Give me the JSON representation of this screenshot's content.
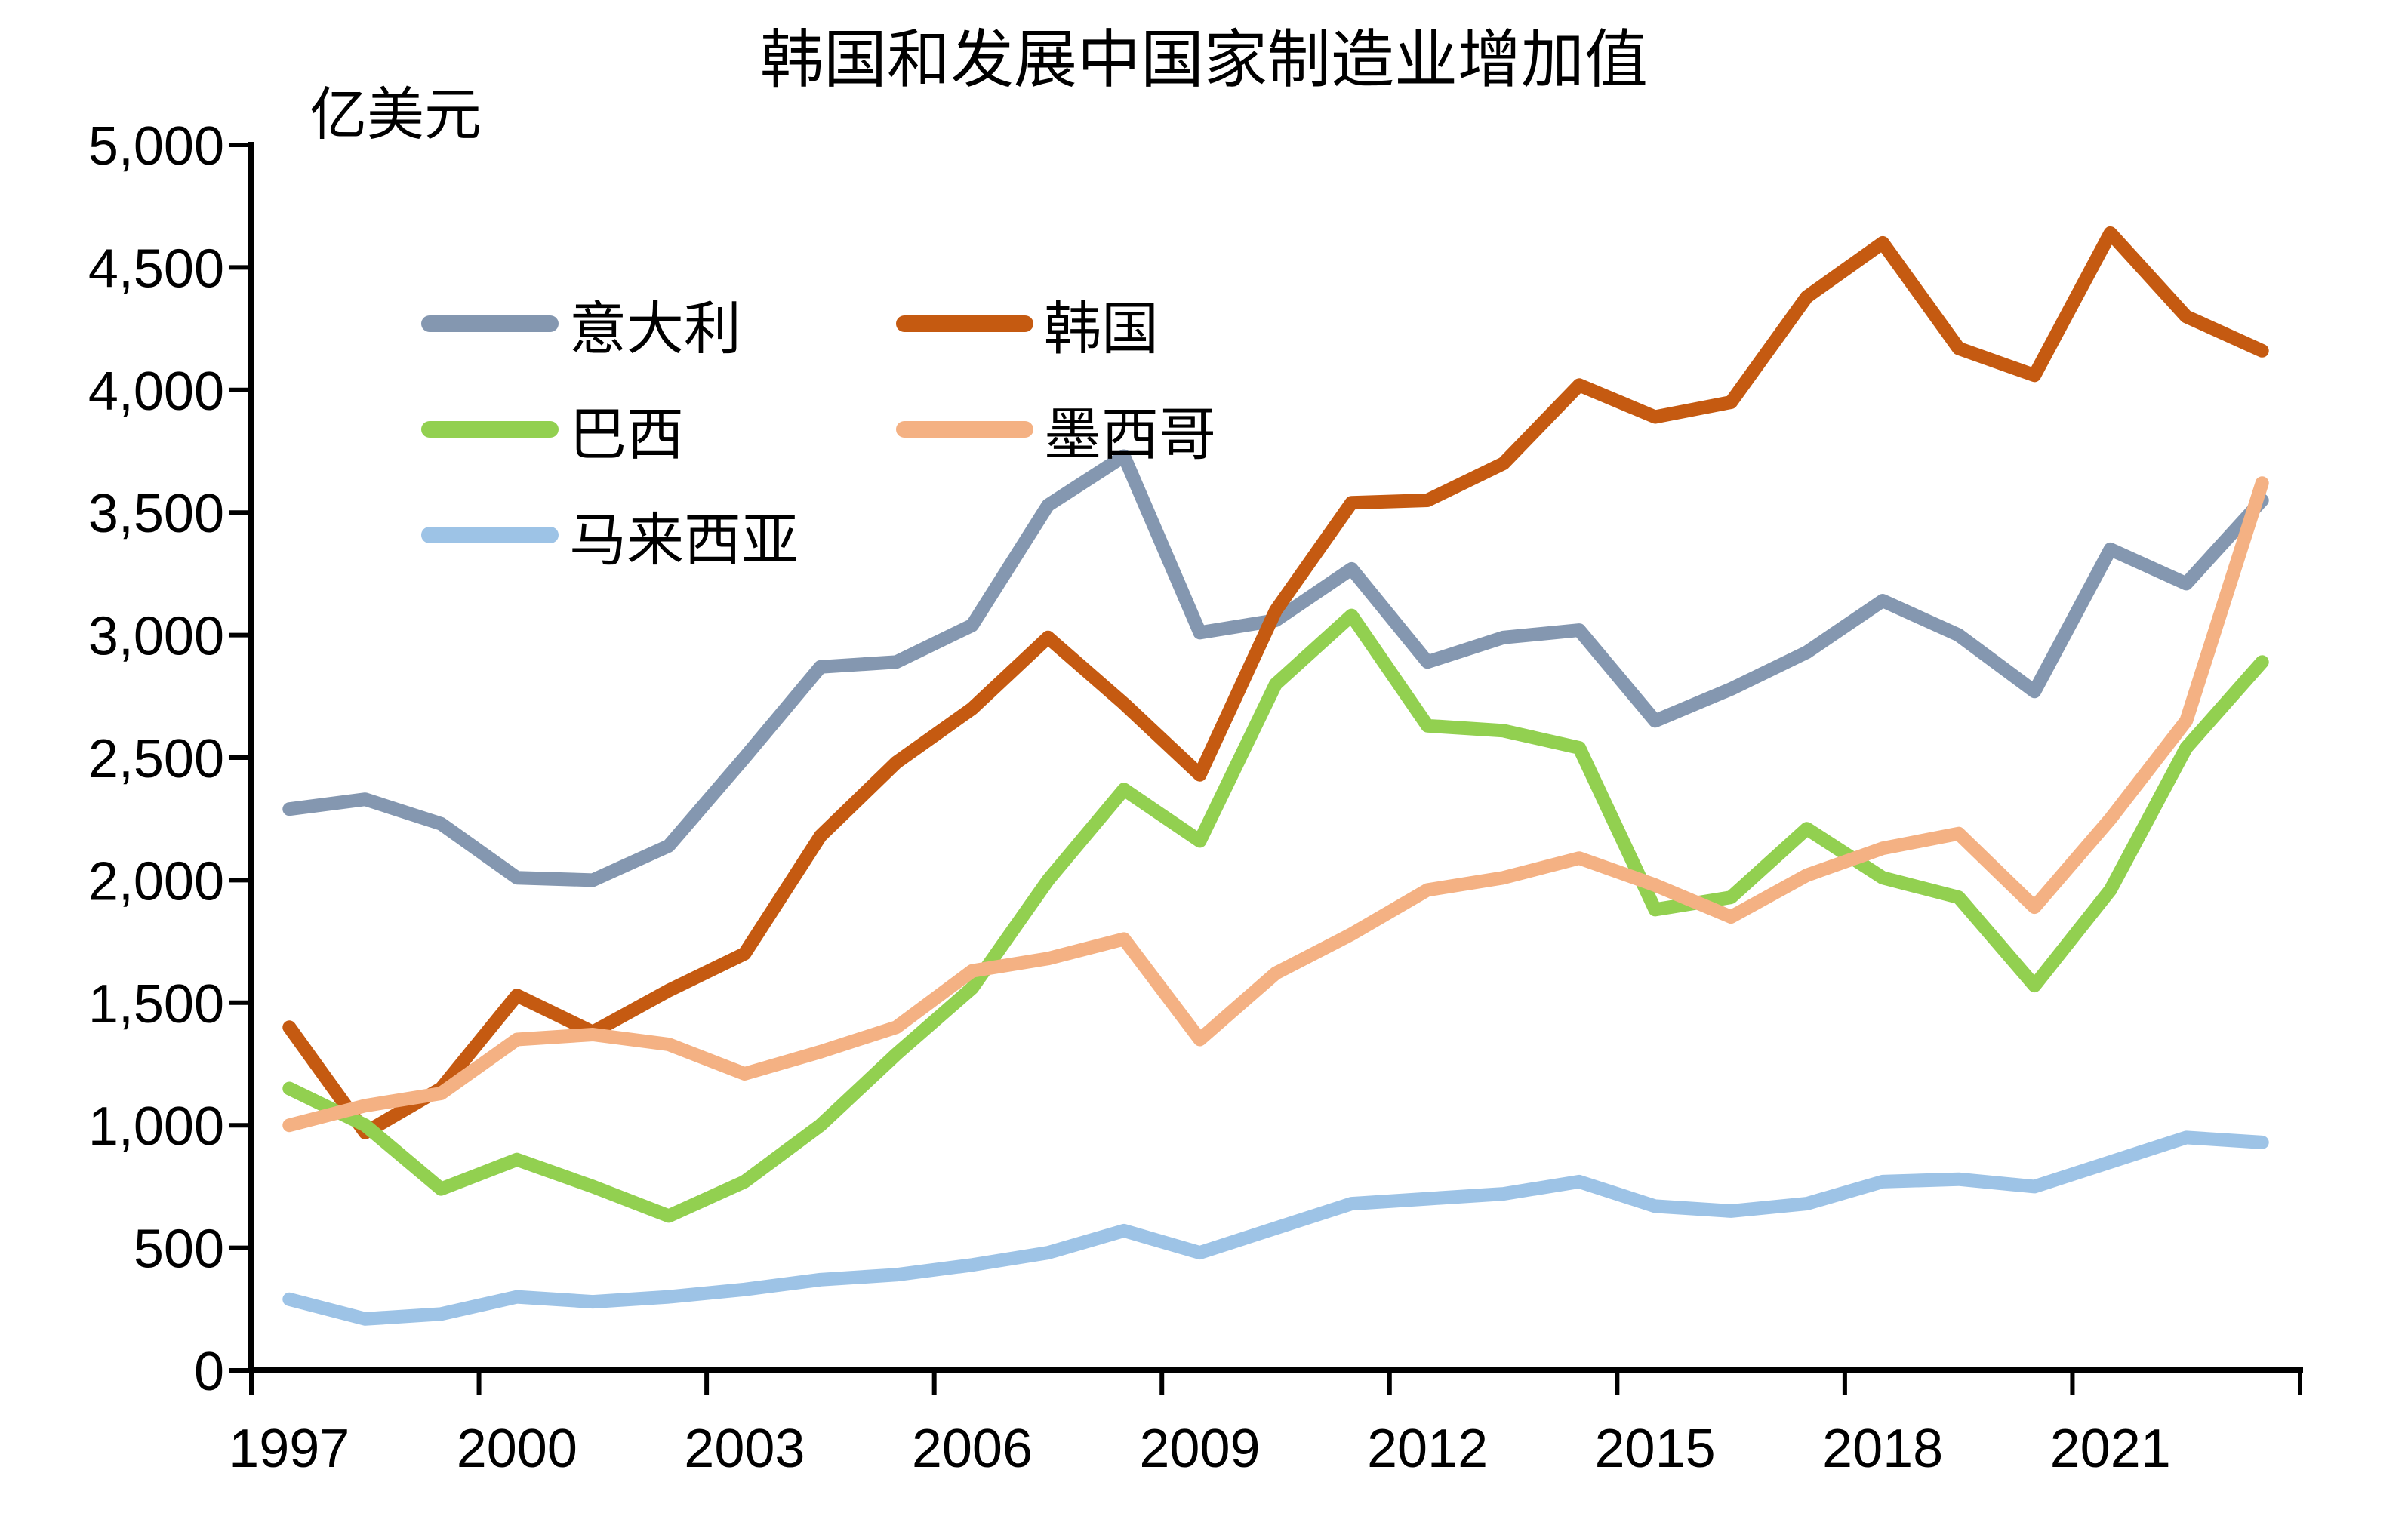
{
  "chart_data": {
    "type": "line",
    "title": "韩国和发展中国家制造业增加值",
    "unit_label": "亿美元",
    "years": [
      1997,
      1998,
      1999,
      2000,
      2001,
      2002,
      2003,
      2004,
      2005,
      2006,
      2007,
      2008,
      2009,
      2010,
      2011,
      2012,
      2013,
      2014,
      2015,
      2016,
      2017,
      2018,
      2019,
      2020,
      2021,
      2022,
      2023
    ],
    "x_axis": {
      "tick_labels": [
        "1997",
        "2000",
        "2003",
        "2006",
        "2009",
        "2012",
        "2015",
        "2018",
        "2021"
      ]
    },
    "y_axis": {
      "min": 0,
      "max": 5000,
      "step": 500,
      "tick_labels": [
        "0",
        "500",
        "1,000",
        "1,500",
        "2,000",
        "2,500",
        "3,000",
        "3,500",
        "4,000",
        "4,500",
        "5,000"
      ]
    },
    "grid": "off",
    "legend_position": "inside-top-left",
    "axis_color": "#000000",
    "series": [
      {
        "id": "italy",
        "name": "意大利",
        "color": "#8497B0",
        "values": [
          2290,
          2330,
          2230,
          2010,
          2000,
          2140,
          2500,
          2870,
          2890,
          3040,
          3530,
          3730,
          3010,
          3060,
          3270,
          2890,
          2990,
          3020,
          2650,
          2780,
          2930,
          3140,
          3000,
          2770,
          3350,
          3210,
          3550
        ]
      },
      {
        "id": "korea",
        "name": "韩国",
        "color": "#C55A11",
        "values": [
          1400,
          970,
          1150,
          1530,
          1380,
          1550,
          1700,
          2180,
          2480,
          2700,
          2990,
          2720,
          2430,
          3100,
          3540,
          3550,
          3700,
          4020,
          3890,
          3950,
          4380,
          4600,
          4170,
          4060,
          4640,
          4300,
          4160
        ]
      },
      {
        "id": "brazil",
        "name": "巴西",
        "color": "#92D050",
        "values": [
          1150,
          1000,
          740,
          860,
          750,
          630,
          770,
          1000,
          1290,
          1560,
          2000,
          2370,
          2160,
          2800,
          3080,
          2630,
          2610,
          2540,
          1880,
          1930,
          2210,
          2010,
          1930,
          1570,
          1960,
          2540,
          2890
        ]
      },
      {
        "id": "mexico",
        "name": "墨西哥",
        "color": "#F4B183",
        "values": [
          1000,
          1080,
          1130,
          1350,
          1370,
          1330,
          1210,
          1300,
          1400,
          1630,
          1680,
          1760,
          1350,
          1620,
          1780,
          1960,
          2010,
          2090,
          1980,
          1850,
          2020,
          2130,
          2190,
          1890,
          2250,
          2650,
          3620
        ]
      },
      {
        "id": "malaysia",
        "name": "马来西亚",
        "color": "#9DC3E6",
        "values": [
          290,
          210,
          230,
          300,
          280,
          300,
          330,
          370,
          390,
          430,
          480,
          570,
          480,
          580,
          680,
          700,
          720,
          770,
          670,
          650,
          680,
          770,
          780,
          750,
          850,
          950,
          930
        ]
      }
    ]
  }
}
